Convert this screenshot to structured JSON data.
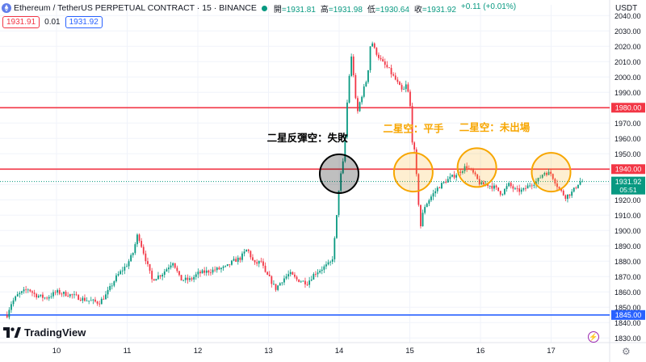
{
  "header": {
    "symbol_title": "Ethereum / TetherUS PERPETUAL CONTRACT · 15 · BINANCE",
    "ohlc": [
      {
        "k": "開",
        "v": "=1931.81"
      },
      {
        "k": "高",
        "v": "=1931.98"
      },
      {
        "k": "低",
        "v": "=1930.64"
      },
      {
        "k": "收",
        "v": "=1931.92"
      },
      {
        "k": "",
        "v": "+0.11 (+0.01%)"
      }
    ],
    "sell_price": "1931.91",
    "spread": "0.01",
    "buy_price": "1931.92",
    "currency": "USDT"
  },
  "branding": {
    "logo_text": "TradingView"
  },
  "colors": {
    "up": "#089981",
    "down": "#f23645",
    "support_line": "#2962ff",
    "resistance_line": "#f23645",
    "circle_orange": "#f7a600",
    "annotation_orange": "#f7a600",
    "annotation_black": "#000000"
  },
  "chart_data": {
    "type": "candlestick",
    "y_axis": {
      "range": [
        1827,
        2047
      ],
      "ticks": [
        1830,
        1840,
        1850,
        1860,
        1870,
        1880,
        1890,
        1900,
        1910,
        1920,
        1930,
        1940,
        1950,
        1960,
        1970,
        1980,
        1990,
        2000,
        2010,
        2020,
        2030,
        2040
      ],
      "tick_labels": [
        "1830.00",
        "1840.00",
        "1850.00",
        "1860.00",
        "1870.00",
        "1880.00",
        "1890.00",
        "1900.00",
        "1910.00",
        "1920.00",
        "1930.00",
        "1940.00",
        "1950.00",
        "1960.00",
        "1970.00",
        "1980.00",
        "1990.00",
        "2000.00",
        "2010.00",
        "2020.00",
        "2030.00",
        "2040.00"
      ]
    },
    "x_axis": {
      "range": [
        9.3,
        17.45
      ],
      "ticks": [
        10,
        11,
        12,
        13,
        14,
        15,
        16,
        17
      ],
      "tick_labels": [
        "10",
        "11",
        "12",
        "13",
        "14",
        "15",
        "16",
        "17"
      ]
    },
    "price_path": [
      [
        9.3,
        1845
      ],
      [
        9.35,
        1852
      ],
      [
        9.45,
        1858
      ],
      [
        9.6,
        1862
      ],
      [
        9.7,
        1858
      ],
      [
        9.85,
        1856
      ],
      [
        10.0,
        1860
      ],
      [
        10.2,
        1858
      ],
      [
        10.4,
        1855
      ],
      [
        10.6,
        1853
      ],
      [
        10.7,
        1858
      ],
      [
        10.85,
        1870
      ],
      [
        11.0,
        1878
      ],
      [
        11.08,
        1885
      ],
      [
        11.15,
        1898
      ],
      [
        11.25,
        1883
      ],
      [
        11.35,
        1868
      ],
      [
        11.5,
        1872
      ],
      [
        11.65,
        1880
      ],
      [
        11.75,
        1868
      ],
      [
        11.9,
        1868
      ],
      [
        12.0,
        1872
      ],
      [
        12.2,
        1874
      ],
      [
        12.4,
        1876
      ],
      [
        12.5,
        1880
      ],
      [
        12.6,
        1882
      ],
      [
        12.7,
        1888
      ],
      [
        12.8,
        1878
      ],
      [
        12.9,
        1880
      ],
      [
        12.95,
        1872
      ],
      [
        13.0,
        1870
      ],
      [
        13.1,
        1862
      ],
      [
        13.2,
        1868
      ],
      [
        13.3,
        1872
      ],
      [
        13.4,
        1868
      ],
      [
        13.55,
        1866
      ],
      [
        13.65,
        1872
      ],
      [
        13.75,
        1875
      ],
      [
        13.85,
        1878
      ],
      [
        13.9,
        1880
      ],
      [
        13.95,
        1900
      ],
      [
        14.0,
        1930
      ],
      [
        14.07,
        1948
      ],
      [
        14.1,
        1975
      ],
      [
        14.15,
        2005
      ],
      [
        14.18,
        2015
      ],
      [
        14.25,
        1975
      ],
      [
        14.3,
        1985
      ],
      [
        14.4,
        2000
      ],
      [
        14.45,
        2025
      ],
      [
        14.5,
        2018
      ],
      [
        14.6,
        2010
      ],
      [
        14.7,
        2005
      ],
      [
        14.8,
        1998
      ],
      [
        14.9,
        1990
      ],
      [
        14.95,
        1995
      ],
      [
        15.0,
        1985
      ],
      [
        15.03,
        1960
      ],
      [
        15.07,
        1950
      ],
      [
        15.12,
        1920
      ],
      [
        15.15,
        1902
      ],
      [
        15.2,
        1915
      ],
      [
        15.3,
        1922
      ],
      [
        15.4,
        1928
      ],
      [
        15.5,
        1932
      ],
      [
        15.6,
        1935
      ],
      [
        15.7,
        1938
      ],
      [
        15.8,
        1942
      ],
      [
        15.9,
        1937
      ],
      [
        16.0,
        1930
      ],
      [
        16.1,
        1930
      ],
      [
        16.2,
        1928
      ],
      [
        16.3,
        1924
      ],
      [
        16.4,
        1930
      ],
      [
        16.5,
        1926
      ],
      [
        16.6,
        1926
      ],
      [
        16.7,
        1930
      ],
      [
        16.8,
        1932
      ],
      [
        16.9,
        1938
      ],
      [
        17.0,
        1937
      ],
      [
        17.1,
        1928
      ],
      [
        17.2,
        1922
      ],
      [
        17.3,
        1925
      ],
      [
        17.4,
        1931.92
      ]
    ],
    "horizontal_lines": [
      {
        "id": "res-1980",
        "value": 1980,
        "label": "1980.00",
        "color": "#f23645"
      },
      {
        "id": "res-1940",
        "value": 1940,
        "label": "1940.00",
        "color": "#f23645"
      },
      {
        "id": "sup-1845",
        "value": 1845,
        "label": "1845.00",
        "color": "#2962ff"
      }
    ],
    "last_price": {
      "value": 1931.92,
      "label": "1931.92",
      "countdown": "05:51",
      "color": "#089981"
    },
    "circles": [
      {
        "id": "circle-black",
        "x": 14.0,
        "y": 1937,
        "color": "#000000",
        "fill": "rgba(0,0,0,0.25)"
      },
      {
        "id": "circle-orange-1",
        "x": 15.05,
        "y": 1938,
        "color": "#f7a600",
        "fill": "rgba(247,166,0,0.18)"
      },
      {
        "id": "circle-orange-2",
        "x": 15.95,
        "y": 1941,
        "color": "#f7a600",
        "fill": "rgba(247,166,0,0.18)"
      },
      {
        "id": "circle-orange-3",
        "x": 17.0,
        "y": 1938,
        "color": "#f7a600",
        "fill": "rgba(247,166,0,0.18)"
      }
    ],
    "annotations": [
      {
        "id": "annotation-1",
        "text": "二星反彈空：失敗",
        "x": 13.55,
        "y": 1958,
        "color": "#000000"
      },
      {
        "id": "annotation-2",
        "text": "二星空：平手",
        "x": 15.05,
        "y": 1964,
        "color": "#f7a600"
      },
      {
        "id": "annotation-3",
        "text": "二星空：未出場",
        "x": 16.2,
        "y": 1965,
        "color": "#f7a600"
      }
    ]
  }
}
